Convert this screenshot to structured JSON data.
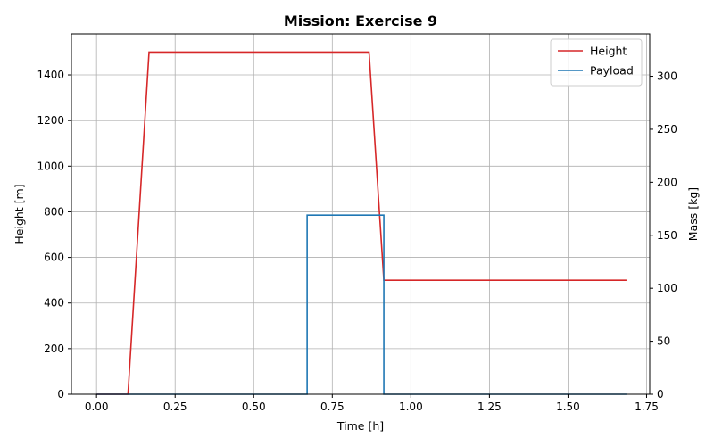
{
  "chart_data": {
    "type": "line",
    "title": "Mission: Exercise 9",
    "xlabel": "Time [h]",
    "ylabel": "Height [m]",
    "y2label": "Mass [kg]",
    "xlim": [
      -0.08,
      1.76
    ],
    "ylim": [
      0,
      1580
    ],
    "y2lim": [
      0,
      340
    ],
    "xticks": [
      0.0,
      0.25,
      0.5,
      0.75,
      1.0,
      1.25,
      1.5,
      1.75
    ],
    "xtick_labels": [
      "0.00",
      "0.25",
      "0.50",
      "0.75",
      "1.00",
      "1.25",
      "1.50",
      "1.75"
    ],
    "yticks": [
      0,
      200,
      400,
      600,
      800,
      1000,
      1200,
      1400
    ],
    "y2ticks": [
      0,
      50,
      100,
      150,
      200,
      250,
      300
    ],
    "grid": true,
    "legend_position": "top-right",
    "series": [
      {
        "name": "Height",
        "axis": "left",
        "color": "#d62728",
        "x": [
          0.0,
          0.1,
          0.167,
          0.867,
          0.914,
          1.686
        ],
        "y": [
          0,
          0,
          1500,
          1500,
          500,
          500
        ]
      },
      {
        "name": "Payload",
        "axis": "right",
        "color": "#1f77b4",
        "x": [
          0.0,
          0.67,
          0.67,
          0.914,
          0.914,
          1.686
        ],
        "y": [
          0,
          0,
          169,
          169,
          0,
          0
        ]
      }
    ]
  }
}
